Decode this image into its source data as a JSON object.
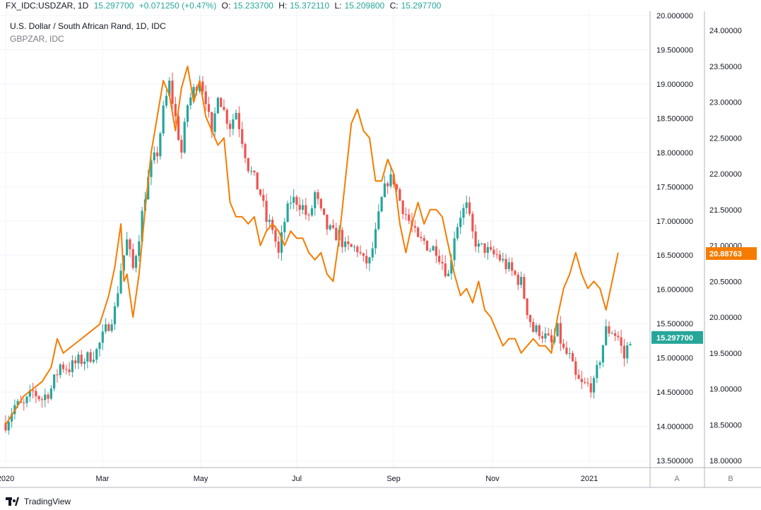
{
  "header": {
    "symbol": "FX_IDC:USDZAR, 1D",
    "last": "15.297700",
    "change": "+0.071250 (+0.47%)",
    "open_label": "O:",
    "open": "15.233700",
    "high_label": "H:",
    "high": "15.372110",
    "low_label": "L:",
    "low": "15.209800",
    "close_label": "C:",
    "close": "15.297700"
  },
  "legend": {
    "main": "U.S. Dollar / South African Rand, 1D, IDC",
    "overlay": "GBPZAR, IDC"
  },
  "footer": {
    "brand": "TradingView"
  },
  "scale_buttons": {
    "a": "A",
    "b": "B"
  },
  "colors": {
    "up": "#26a69a",
    "down": "#ef5350",
    "overlay": "#f57c00",
    "grid": "#f0f3fa",
    "axis_text": "#131722"
  },
  "chart_data": {
    "type": "candlestick-with-line-overlay",
    "x_tick_labels": [
      "2020",
      "Mar",
      "May",
      "Jul",
      "Sep",
      "Nov",
      "2021"
    ],
    "y_left_ticks": [
      "13.500000",
      "14.000000",
      "14.500000",
      "15.000000",
      "15.500000",
      "16.000000",
      "16.500000",
      "17.000000",
      "17.500000",
      "18.000000",
      "18.500000",
      "19.000000",
      "19.500000",
      "20.000000"
    ],
    "y_right_ticks": [
      "18.00000",
      "18.50000",
      "19.00000",
      "19.50000",
      "20.00000",
      "20.50000",
      "21.00000",
      "21.50000",
      "22.00000",
      "22.50000",
      "23.00000",
      "23.50000",
      "24.00000"
    ],
    "y_left_range": [
      13.5,
      20.0
    ],
    "y_right_range": [
      18.0,
      24.2
    ],
    "last_usdzar_label": "15.297700",
    "last_gbpzar_label": "20.88763",
    "usdzar_close_path": [
      [
        0,
        14.05
      ],
      [
        3,
        14.3
      ],
      [
        6,
        14.3
      ],
      [
        9,
        14.5
      ],
      [
        12,
        14.4
      ],
      [
        15,
        14.55
      ],
      [
        18,
        14.9
      ],
      [
        21,
        14.85
      ],
      [
        24,
        14.95
      ],
      [
        27,
        15.0
      ],
      [
        30,
        15.1
      ],
      [
        33,
        15.4
      ],
      [
        36,
        15.7
      ],
      [
        38,
        16.3
      ],
      [
        40,
        16.7
      ],
      [
        42,
        16.3
      ],
      [
        44,
        16.8
      ],
      [
        46,
        17.4
      ],
      [
        48,
        17.8
      ],
      [
        50,
        18.0
      ],
      [
        52,
        18.6
      ],
      [
        54,
        19.0
      ],
      [
        56,
        18.5
      ],
      [
        58,
        18.0
      ],
      [
        60,
        18.7
      ],
      [
        62,
        18.9
      ],
      [
        64,
        19.1
      ],
      [
        66,
        18.8
      ],
      [
        68,
        18.2
      ],
      [
        70,
        18.9
      ],
      [
        72,
        18.6
      ],
      [
        74,
        18.4
      ],
      [
        76,
        18.6
      ],
      [
        78,
        18.2
      ],
      [
        80,
        17.8
      ],
      [
        82,
        17.6
      ],
      [
        84,
        17.4
      ],
      [
        86,
        17.0
      ],
      [
        88,
        16.9
      ],
      [
        90,
        16.5
      ],
      [
        92,
        17.0
      ],
      [
        94,
        17.3
      ],
      [
        96,
        17.3
      ],
      [
        98,
        17.2
      ],
      [
        100,
        17.0
      ],
      [
        102,
        17.4
      ],
      [
        104,
        17.1
      ],
      [
        106,
        16.9
      ],
      [
        108,
        16.8
      ],
      [
        110,
        16.8
      ],
      [
        112,
        16.6
      ],
      [
        114,
        16.6
      ],
      [
        116,
        16.6
      ],
      [
        118,
        16.4
      ],
      [
        120,
        16.4
      ],
      [
        122,
        16.8
      ],
      [
        124,
        17.3
      ],
      [
        126,
        17.6
      ],
      [
        128,
        17.6
      ],
      [
        130,
        17.3
      ],
      [
        132,
        17.1
      ],
      [
        134,
        16.9
      ],
      [
        136,
        16.7
      ],
      [
        138,
        16.7
      ],
      [
        140,
        16.6
      ],
      [
        142,
        16.6
      ],
      [
        144,
        16.4
      ],
      [
        146,
        16.2
      ],
      [
        148,
        16.8
      ],
      [
        150,
        17.1
      ],
      [
        152,
        17.2
      ],
      [
        154,
        16.8
      ],
      [
        156,
        16.6
      ],
      [
        158,
        16.6
      ],
      [
        160,
        16.5
      ],
      [
        162,
        16.5
      ],
      [
        164,
        16.4
      ],
      [
        166,
        16.3
      ],
      [
        168,
        16.2
      ],
      [
        170,
        16.1
      ],
      [
        172,
        15.7
      ],
      [
        174,
        15.4
      ],
      [
        176,
        15.4
      ],
      [
        178,
        15.3
      ],
      [
        180,
        15.2
      ],
      [
        182,
        15.4
      ],
      [
        184,
        15.1
      ],
      [
        186,
        15.0
      ],
      [
        188,
        14.7
      ],
      [
        190,
        14.6
      ],
      [
        192,
        14.6
      ],
      [
        194,
        14.6
      ],
      [
        196,
        15.0
      ],
      [
        198,
        15.4
      ],
      [
        200,
        15.4
      ],
      [
        202,
        15.3
      ],
      [
        204,
        15.0
      ],
      [
        206,
        15.3
      ]
    ],
    "usdzar_ohlc_fraction_index_range": [
      0,
      206
    ],
    "gbpzar_path": [
      [
        0,
        18.5
      ],
      [
        3,
        18.7
      ],
      [
        6,
        18.9
      ],
      [
        9,
        19.0
      ],
      [
        12,
        19.1
      ],
      [
        15,
        19.3
      ],
      [
        17,
        19.7
      ],
      [
        19,
        19.5
      ],
      [
        22,
        19.6
      ],
      [
        25,
        19.7
      ],
      [
        28,
        19.8
      ],
      [
        31,
        19.9
      ],
      [
        34,
        20.3
      ],
      [
        36,
        20.7
      ],
      [
        38,
        21.3
      ],
      [
        39,
        20.5
      ],
      [
        40,
        20.6
      ],
      [
        42,
        20.0
      ],
      [
        44,
        20.6
      ],
      [
        46,
        21.5
      ],
      [
        48,
        22.3
      ],
      [
        50,
        22.8
      ],
      [
        52,
        23.3
      ],
      [
        54,
        23.1
      ],
      [
        56,
        22.6
      ],
      [
        58,
        23.2
      ],
      [
        60,
        23.5
      ],
      [
        62,
        23.0
      ],
      [
        64,
        23.3
      ],
      [
        66,
        22.8
      ],
      [
        68,
        22.6
      ],
      [
        70,
        22.4
      ],
      [
        72,
        22.5
      ],
      [
        74,
        21.6
      ],
      [
        76,
        21.4
      ],
      [
        78,
        21.4
      ],
      [
        80,
        21.3
      ],
      [
        82,
        21.4
      ],
      [
        84,
        21.0
      ],
      [
        86,
        21.2
      ],
      [
        88,
        21.3
      ],
      [
        90,
        21.2
      ],
      [
        92,
        21.0
      ],
      [
        94,
        21.2
      ],
      [
        96,
        21.1
      ],
      [
        98,
        21.1
      ],
      [
        100,
        20.9
      ],
      [
        102,
        20.8
      ],
      [
        104,
        20.9
      ],
      [
        106,
        20.6
      ],
      [
        108,
        20.5
      ],
      [
        110,
        21.1
      ],
      [
        112,
        21.9
      ],
      [
        114,
        22.7
      ],
      [
        116,
        22.9
      ],
      [
        118,
        22.6
      ],
      [
        120,
        22.5
      ],
      [
        122,
        21.9
      ],
      [
        124,
        21.9
      ],
      [
        126,
        22.2
      ],
      [
        128,
        22.0
      ],
      [
        130,
        21.3
      ],
      [
        132,
        20.9
      ],
      [
        134,
        21.3
      ],
      [
        136,
        21.6
      ],
      [
        138,
        21.3
      ],
      [
        140,
        21.5
      ],
      [
        142,
        21.5
      ],
      [
        144,
        21.4
      ],
      [
        146,
        21.0
      ],
      [
        148,
        20.6
      ],
      [
        150,
        20.3
      ],
      [
        152,
        20.4
      ],
      [
        154,
        20.2
      ],
      [
        156,
        20.5
      ],
      [
        158,
        20.1
      ],
      [
        160,
        20.0
      ],
      [
        162,
        19.8
      ],
      [
        164,
        19.6
      ],
      [
        166,
        19.7
      ],
      [
        168,
        19.7
      ],
      [
        170,
        19.5
      ],
      [
        172,
        19.6
      ],
      [
        174,
        19.7
      ],
      [
        176,
        19.6
      ],
      [
        178,
        19.6
      ],
      [
        180,
        19.5
      ],
      [
        182,
        20.0
      ],
      [
        184,
        20.4
      ],
      [
        186,
        20.6
      ],
      [
        188,
        20.9
      ],
      [
        190,
        20.6
      ],
      [
        192,
        20.4
      ],
      [
        194,
        20.5
      ],
      [
        196,
        20.4
      ],
      [
        198,
        20.1
      ],
      [
        200,
        20.5
      ],
      [
        202,
        20.9
      ]
    ]
  }
}
